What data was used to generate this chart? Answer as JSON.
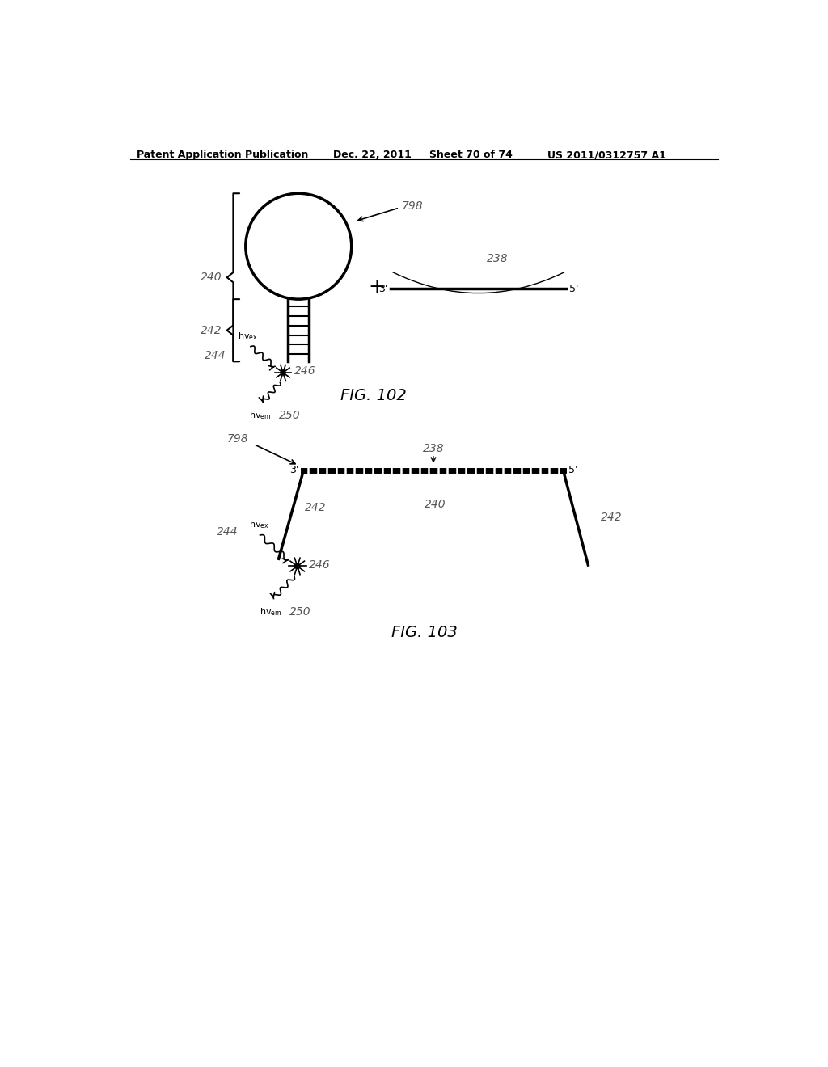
{
  "bg_color": "#ffffff",
  "line_color": "#000000",
  "header_text": "Patent Application Publication",
  "header_date": "Dec. 22, 2011",
  "header_sheet": "Sheet 70 of 74",
  "header_patent": "US 2011/0312757 A1",
  "fig102_label": "FIG. 102",
  "fig103_label": "FIG. 103",
  "labels": {
    "240_top": "240",
    "242_top": "242",
    "798_top": "798",
    "238_top": "238",
    "246_top": "246",
    "244_top": "244",
    "250_top": "250",
    "798_bot": "798",
    "238_bot": "238",
    "240_bot": "240",
    "242_bot_left": "242",
    "242_bot_right": "242",
    "246_bot": "246",
    "244_bot": "244",
    "250_bot": "250"
  }
}
